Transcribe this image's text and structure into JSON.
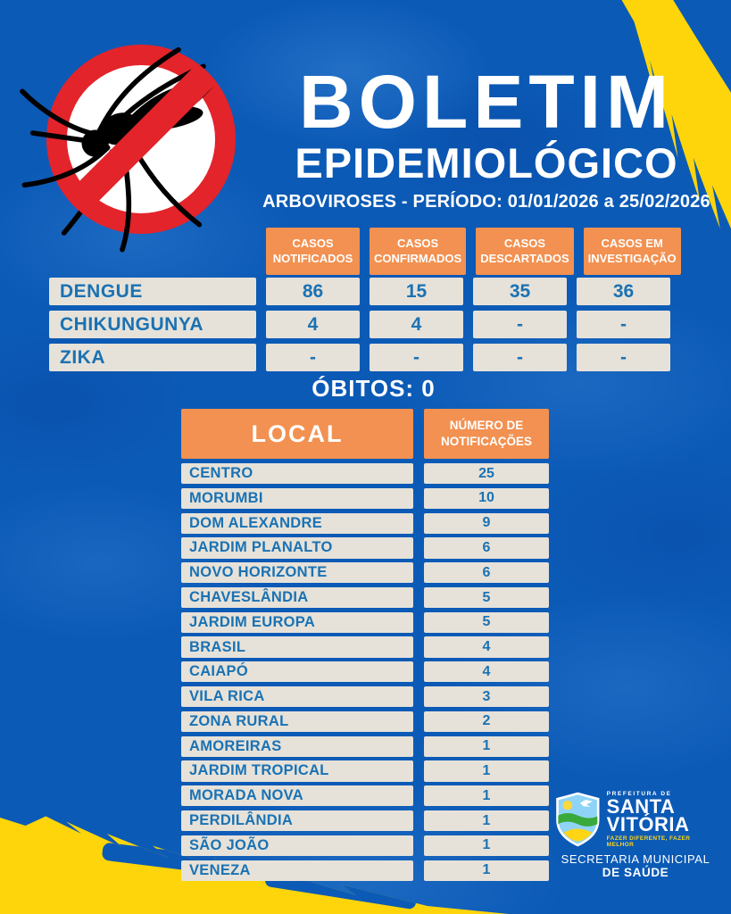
{
  "header": {
    "title_line1": "BOLETIM",
    "title_line2": "EPIDEMIOLÓGICO",
    "subtitle": "ARBOVIROSES - PERÍODO: 01/01/2026 a 25/02/2026"
  },
  "icons": {
    "top_left": "no-mosquito-prohibition-sign",
    "footer": "santa-vitoria-coat-of-arms-shield"
  },
  "summary_table": {
    "columns": [
      "CASOS NOTIFICADOS",
      "CASOS CONFIRMADOS",
      "CASOS DESCARTADOS",
      "CASOS EM INVESTIGAÇÃO"
    ],
    "rows": [
      {
        "label": "DENGUE",
        "values": [
          "86",
          "15",
          "35",
          "36"
        ]
      },
      {
        "label": "CHIKUNGUNYA",
        "values": [
          "4",
          "4",
          "-",
          "-"
        ]
      },
      {
        "label": "ZIKA",
        "values": [
          "-",
          "-",
          "-",
          "-"
        ]
      }
    ]
  },
  "deaths": "ÓBITOS: 0",
  "local_table": {
    "columns": [
      "LOCAL",
      "NÚMERO DE NOTIFICAÇÕES"
    ],
    "rows": [
      {
        "local": "CENTRO",
        "n": "25"
      },
      {
        "local": "MORUMBI",
        "n": "10"
      },
      {
        "local": "DOM ALEXANDRE",
        "n": "9"
      },
      {
        "local": "JARDIM PLANALTO",
        "n": "6"
      },
      {
        "local": "NOVO HORIZONTE",
        "n": "6"
      },
      {
        "local": "CHAVESLÂNDIA",
        "n": "5"
      },
      {
        "local": "JARDIM EUROPA",
        "n": "5"
      },
      {
        "local": "BRASIL",
        "n": "4"
      },
      {
        "local": "CAIAPÓ",
        "n": "4"
      },
      {
        "local": "VILA RICA",
        "n": "3"
      },
      {
        "local": "ZONA RURAL",
        "n": "2"
      },
      {
        "local": "AMOREIRAS",
        "n": "1"
      },
      {
        "local": "JARDIM TROPICAL",
        "n": "1"
      },
      {
        "local": "MORADA NOVA",
        "n": "1"
      },
      {
        "local": "PERDILÂNDIA",
        "n": "1"
      },
      {
        "local": "SÃO JOÃO",
        "n": "1"
      },
      {
        "local": "VENEZA",
        "n": "1"
      }
    ]
  },
  "footer": {
    "prefeitura": "PREFEITURA DE",
    "city_line1": "SANTA",
    "city_line2": "VITÓRIA",
    "slogan": "FAZER DIFERENTE, FAZER MELHOR",
    "secretaria_line1": "SECRETARIA MUNICIPAL",
    "secretaria_line2": "DE SAÚDE"
  },
  "colors": {
    "background_blue": "#0b5ab6",
    "accent_orange": "#f29151",
    "cell_beige": "#e6e2d9",
    "cell_text_blue": "#1a72b4",
    "prohibition_red": "#e3242a",
    "brush_yellow": "#fdd50a",
    "white": "#ffffff"
  }
}
